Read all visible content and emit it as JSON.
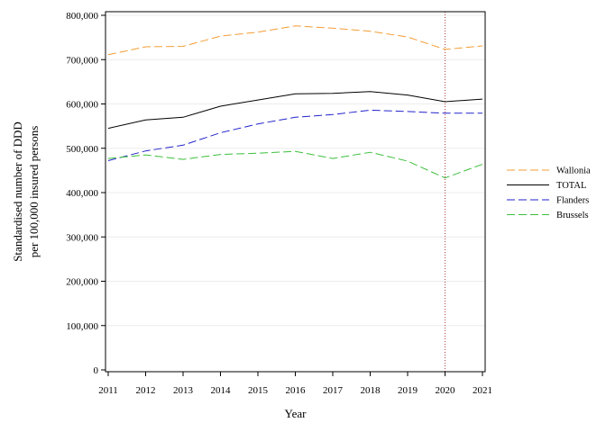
{
  "chart_data": {
    "type": "line",
    "title": "",
    "xlabel": "Year",
    "ylabel_lines": [
      "Standardised number of DDD",
      "per 100,000 insured persons"
    ],
    "x": [
      2011,
      2012,
      2013,
      2014,
      2015,
      2016,
      2017,
      2018,
      2019,
      2020,
      2021
    ],
    "x_tick_labels": [
      "2011",
      "2012",
      "2013",
      "2014",
      "2015",
      "2016",
      "2017",
      "2018",
      "2019",
      "2020",
      "2021"
    ],
    "xlim": [
      2011,
      2021
    ],
    "ylim": [
      0,
      800000
    ],
    "y_ticks": [
      0,
      100000,
      200000,
      300000,
      400000,
      500000,
      600000,
      700000,
      800000
    ],
    "y_tick_labels": [
      "0",
      "100,000",
      "200,000",
      "300,000",
      "400,000",
      "500,000",
      "600,000",
      "700,000",
      "800,000"
    ],
    "grid": "horizontal",
    "reference_line_x": 2020,
    "legend_position": "right",
    "series": [
      {
        "name": "Wallonia",
        "color": "#f39c34",
        "style": "dashed",
        "values": [
          711000,
          729000,
          730000,
          753000,
          762000,
          776000,
          771000,
          764000,
          751000,
          723000,
          731000
        ]
      },
      {
        "name": "TOTAL",
        "color": "#000000",
        "style": "solid",
        "values": [
          545000,
          564000,
          570000,
          595000,
          609000,
          623000,
          624000,
          628000,
          620000,
          605000,
          611000
        ]
      },
      {
        "name": "Flanders",
        "color": "#2222cc",
        "style": "dashed",
        "values": [
          472000,
          494000,
          507000,
          535000,
          555000,
          570000,
          576000,
          586000,
          583000,
          579000,
          579000
        ]
      },
      {
        "name": "Brussels",
        "color": "#3cbf3c",
        "style": "dashed",
        "values": [
          477000,
          485000,
          475000,
          486000,
          489000,
          493000,
          477000,
          491000,
          471000,
          433000,
          464000
        ]
      }
    ]
  }
}
